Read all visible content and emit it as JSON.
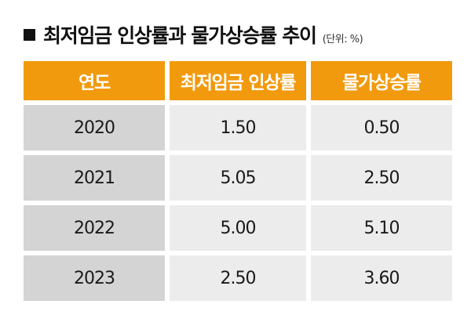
{
  "title": "최저임금 인상률과 물가상승률 추이",
  "unit": "(단위: %)",
  "chart_data": {
    "type": "table",
    "columns": [
      "연도",
      "최저임금 인상률",
      "물가상승률"
    ],
    "rows": [
      [
        "2020",
        "1.50",
        "0.50"
      ],
      [
        "2021",
        "5.05",
        "2.50"
      ],
      [
        "2022",
        "5.00",
        "5.10"
      ],
      [
        "2023",
        "2.50",
        "3.60"
      ]
    ]
  },
  "colors": {
    "header_bg": "#f29a0e",
    "header_text": "#ffffff",
    "year_cell_bg": "#d4d4d4",
    "value_cell_bg": "#ececec"
  }
}
